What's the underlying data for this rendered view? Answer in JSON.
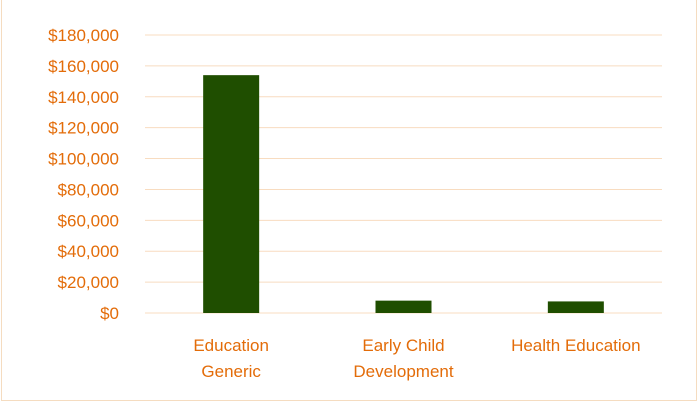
{
  "colors": {
    "bar": "#1f4e00",
    "label": "#e36c09",
    "grid": "#f8dcc0",
    "frame": "#f5dcc0"
  },
  "chart_data": {
    "type": "bar",
    "title": "",
    "xlabel": "",
    "ylabel": "",
    "categories": [
      [
        "Education",
        "Generic"
      ],
      [
        "Early Child",
        "Development"
      ],
      [
        "Health Education"
      ]
    ],
    "values": [
      154000,
      8000,
      7500
    ],
    "ylim": [
      0,
      180000
    ],
    "yticks": [
      0,
      20000,
      40000,
      60000,
      80000,
      100000,
      120000,
      140000,
      160000,
      180000
    ],
    "ytick_labels": [
      "$0",
      "$20,000",
      "$40,000",
      "$60,000",
      "$80,000",
      "$100,000",
      "$120,000",
      "$140,000",
      "$160,000",
      "$180,000"
    ],
    "grid": true,
    "legend": "none"
  }
}
